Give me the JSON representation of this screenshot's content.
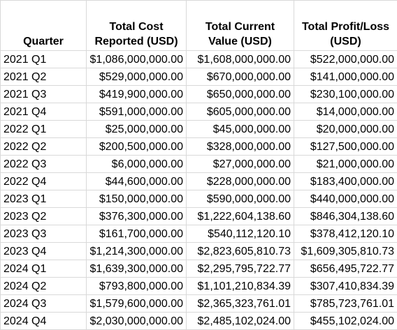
{
  "table": {
    "header": [
      "Quarter",
      "Total Cost Reported (USD)",
      "Total Current Value (USD)",
      "Total Profit/Loss (USD)"
    ],
    "rows": [
      [
        "2021 Q1",
        "$1,086,000,000.00",
        "$1,608,000,000.00",
        "$522,000,000.00"
      ],
      [
        "2021 Q2",
        "$529,000,000.00",
        "$670,000,000.00",
        "$141,000,000.00"
      ],
      [
        "2021 Q3",
        "$419,900,000.00",
        "$650,000,000.00",
        "$230,100,000.00"
      ],
      [
        "2021 Q4",
        "$591,000,000.00",
        "$605,000,000.00",
        "$14,000,000.00"
      ],
      [
        "2022 Q1",
        "$25,000,000.00",
        "$45,000,000.00",
        "$20,000,000.00"
      ],
      [
        "2022 Q2",
        "$200,500,000.00",
        "$328,000,000.00",
        "$127,500,000.00"
      ],
      [
        "2022 Q3",
        "$6,000,000.00",
        "$27,000,000.00",
        "$21,000,000.00"
      ],
      [
        "2022 Q4",
        "$44,600,000.00",
        "$228,000,000.00",
        "$183,400,000.00"
      ],
      [
        "2023 Q1",
        "$150,000,000.00",
        "$590,000,000.00",
        "$440,000,000.00"
      ],
      [
        "2023 Q2",
        "$376,300,000.00",
        "$1,222,604,138.60",
        "$846,304,138.60"
      ],
      [
        "2023 Q3",
        "$161,700,000.00",
        "$540,112,120.10",
        "$378,412,120.10"
      ],
      [
        "2023 Q4",
        "$1,214,300,000.00",
        "$2,823,605,810.73",
        "$1,609,305,810.73"
      ],
      [
        "2024 Q1",
        "$1,639,300,000.00",
        "$2,295,795,722.77",
        "$656,495,722.77"
      ],
      [
        "2024 Q2",
        "$793,800,000.00",
        "$1,101,210,834.39",
        "$307,410,834.39"
      ],
      [
        "2024 Q3",
        "$1,579,600,000.00",
        "$2,365,323,761.01",
        "$785,723,761.01"
      ],
      [
        "2024 Q4",
        "$2,030,000,000.00",
        "$2,485,102,024.00",
        "$455,102,024.00"
      ]
    ]
  }
}
